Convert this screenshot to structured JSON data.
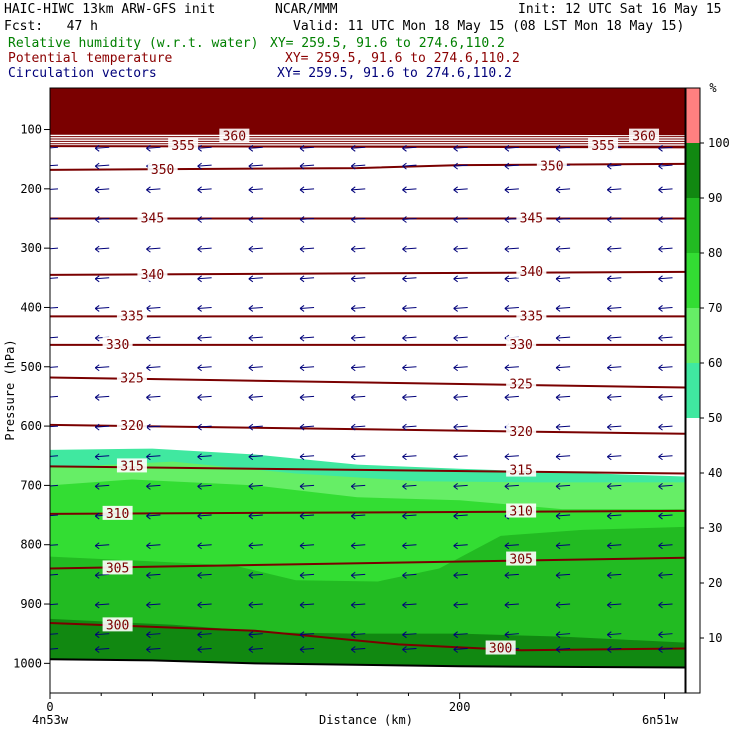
{
  "header": {
    "model": "HAIC-HIWC 13km ARW-GFS init",
    "org": "NCAR/MMM",
    "init": "Init: 12 UTC Sat 16 May 15",
    "fcst": "Fcst:   47 h",
    "valid": "Valid: 11 UTC Mon 18 May 15 (08 LST Mon 18 May 15)",
    "fields": [
      {
        "name": "Relative humidity (w.r.t. water)",
        "xy": "XY= 259.5, 91.6 to 274.6,110.2",
        "color": "#008000"
      },
      {
        "name": "Potential temperature",
        "xy": "XY= 259.5, 91.6 to 274.6,110.2",
        "color": "#8b0000"
      },
      {
        "name": "Circulation vectors",
        "xy": "XY= 259.5, 91.6 to 274.6,110.2",
        "color": "#00007a"
      }
    ]
  },
  "chart_data": {
    "type": "cross-section",
    "xlabel": "Distance (km)",
    "ylabel": "Pressure (hPa)",
    "xlim": [
      0,
      310
    ],
    "ylim": [
      1050,
      30
    ],
    "x_ticks": [
      0,
      200
    ],
    "x_end_labels": [
      "4n53w",
      "6n51w"
    ],
    "y_ticks": [
      100,
      200,
      300,
      400,
      500,
      600,
      700,
      800,
      900,
      1000
    ],
    "colorbar": {
      "unit": "%",
      "levels": [
        10,
        20,
        30,
        40,
        50,
        60,
        70,
        80,
        90,
        100
      ],
      "fills": [
        {
          "from": 50,
          "to": 60,
          "color": "#40e8a0"
        },
        {
          "from": 60,
          "to": 70,
          "color": "#66ee66"
        },
        {
          "from": 70,
          "to": 80,
          "color": "#33dd33"
        },
        {
          "from": 80,
          "to": 90,
          "color": "#22bb22"
        },
        {
          "from": 90,
          "to": 100,
          "color": "#118811"
        },
        {
          "from": 100,
          "to": 110,
          "color": "#ff8080"
        }
      ]
    },
    "rh_regions": [
      {
        "level": 50,
        "color": "#40e8a0",
        "top": [
          [
            0,
            640
          ],
          [
            50,
            638
          ],
          [
            100,
            648
          ],
          [
            150,
            665
          ],
          [
            200,
            672
          ],
          [
            250,
            678
          ],
          [
            310,
            685
          ]
        ]
      },
      {
        "level": 60,
        "color": "#66ee66",
        "top": [
          [
            0,
            670
          ],
          [
            60,
            660
          ],
          [
            120,
            680
          ],
          [
            180,
            693
          ],
          [
            240,
            695
          ],
          [
            310,
            695
          ]
        ]
      },
      {
        "level": 70,
        "color": "#33dd33",
        "top": [
          [
            0,
            700
          ],
          [
            40,
            690
          ],
          [
            100,
            700
          ],
          [
            150,
            720
          ],
          [
            200,
            725
          ],
          [
            250,
            740
          ],
          [
            310,
            740
          ]
        ]
      },
      {
        "level": 80,
        "color": "#22bb22",
        "top": [
          [
            0,
            820
          ],
          [
            50,
            828
          ],
          [
            90,
            835
          ],
          [
            120,
            860
          ],
          [
            160,
            862
          ],
          [
            190,
            840
          ],
          [
            220,
            785
          ],
          [
            260,
            775
          ],
          [
            310,
            770
          ]
        ]
      },
      {
        "level": 90,
        "color": "#118811",
        "top": [
          [
            0,
            925
          ],
          [
            60,
            935
          ],
          [
            110,
            948
          ],
          [
            150,
            950
          ],
          [
            200,
            950
          ],
          [
            250,
            955
          ],
          [
            310,
            965
          ]
        ]
      }
    ],
    "theta_contours": [
      {
        "value": 360,
        "points": [
          [
            0,
            105
          ],
          [
            310,
            108
          ]
        ],
        "labels": [
          [
            90,
            112
          ],
          [
            290,
            112
          ]
        ]
      },
      {
        "value": 355,
        "points": [
          [
            0,
            128
          ],
          [
            310,
            130
          ]
        ],
        "labels": [
          [
            65,
            128
          ],
          [
            270,
            128
          ]
        ]
      },
      {
        "value": 350,
        "points": [
          [
            0,
            168
          ],
          [
            150,
            165
          ],
          [
            200,
            160
          ],
          [
            310,
            158
          ]
        ],
        "labels": [
          [
            55,
            168
          ],
          [
            245,
            162
          ]
        ]
      },
      {
        "value": 345,
        "points": [
          [
            0,
            250
          ],
          [
            310,
            250
          ]
        ],
        "labels": [
          [
            50,
            250
          ],
          [
            235,
            250
          ]
        ]
      },
      {
        "value": 340,
        "points": [
          [
            0,
            345
          ],
          [
            310,
            340
          ]
        ],
        "labels": [
          [
            50,
            345
          ],
          [
            235,
            340
          ]
        ]
      },
      {
        "value": 335,
        "points": [
          [
            0,
            415
          ],
          [
            310,
            415
          ]
        ],
        "labels": [
          [
            40,
            415
          ],
          [
            235,
            415
          ]
        ]
      },
      {
        "value": 330,
        "points": [
          [
            0,
            463
          ],
          [
            310,
            463
          ]
        ],
        "labels": [
          [
            33,
            463
          ],
          [
            230,
            463
          ]
        ]
      },
      {
        "value": 325,
        "points": [
          [
            0,
            518
          ],
          [
            310,
            535
          ]
        ],
        "labels": [
          [
            40,
            520
          ],
          [
            230,
            530
          ]
        ]
      },
      {
        "value": 320,
        "points": [
          [
            0,
            598
          ],
          [
            310,
            613
          ]
        ],
        "labels": [
          [
            40,
            600
          ],
          [
            230,
            610
          ]
        ]
      },
      {
        "value": 315,
        "points": [
          [
            0,
            668
          ],
          [
            310,
            680
          ]
        ],
        "labels": [
          [
            40,
            668
          ],
          [
            230,
            675
          ]
        ]
      },
      {
        "value": 310,
        "points": [
          [
            0,
            748
          ],
          [
            310,
            743
          ]
        ],
        "labels": [
          [
            33,
            748
          ],
          [
            230,
            744
          ]
        ]
      },
      {
        "value": 305,
        "points": [
          [
            0,
            840
          ],
          [
            310,
            822
          ]
        ],
        "labels": [
          [
            33,
            840
          ],
          [
            230,
            825
          ]
        ]
      },
      {
        "value": 300,
        "points": [
          [
            0,
            932
          ],
          [
            100,
            945
          ],
          [
            170,
            968
          ],
          [
            230,
            978
          ],
          [
            310,
            975
          ]
        ],
        "labels": [
          [
            33,
            936
          ],
          [
            220,
            975
          ]
        ]
      }
    ],
    "terrain": [
      [
        0,
        993
      ],
      [
        50,
        995
      ],
      [
        100,
        1000
      ],
      [
        200,
        1005
      ],
      [
        310,
        1007
      ]
    ],
    "vectors": {
      "x": [
        0,
        25,
        50,
        75,
        100,
        125,
        150,
        175,
        200,
        225,
        250,
        275,
        300
      ],
      "p": [
        130,
        160,
        200,
        250,
        300,
        350,
        400,
        450,
        500,
        550,
        600,
        650,
        700,
        750,
        800,
        850,
        900,
        950,
        975
      ],
      "color": "#00007a"
    }
  }
}
